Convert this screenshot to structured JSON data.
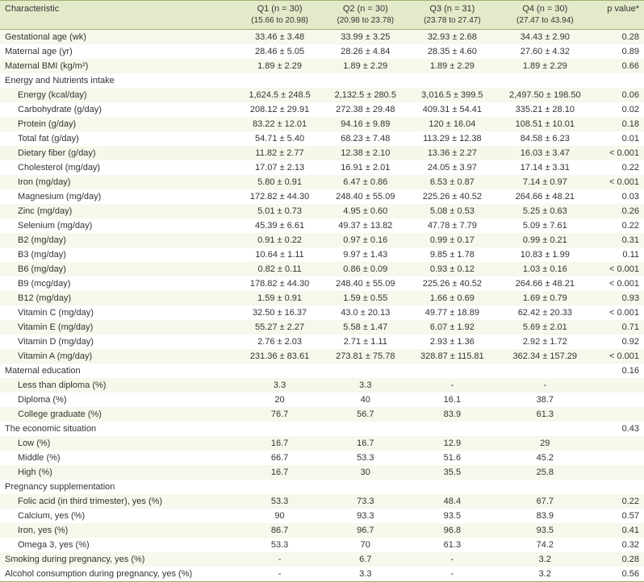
{
  "header": {
    "char": "Characteristic",
    "q1_l1": "Q1 (n = 30)",
    "q1_l2": "(15.66 to 20.98)",
    "q2_l1": "Q2 (n = 30)",
    "q2_l2": "(20.98 to 23.78)",
    "q3_l1": "Q3 (n = 31)",
    "q3_l2": "(23.78 to 27.47)",
    "q4_l1": "Q4 (n = 30)",
    "q4_l2": "(27.47 to 43.94)",
    "p": "p value*"
  },
  "rows": [
    {
      "cls": "odd section",
      "c": [
        "Gestational age (wk)",
        "33.46 ± 3.48",
        "33.99 ± 3.25",
        "32.93 ± 2.68",
        "34.43 ± 2.90",
        "0.28"
      ]
    },
    {
      "cls": "even section",
      "c": [
        "Maternal age (yr)",
        "28.46 ± 5.05",
        "28.26 ± 4.84",
        "28.35 ± 4.60",
        "27.60 ± 4.32",
        "0.89"
      ]
    },
    {
      "cls": "odd section",
      "c": [
        "Maternal BMI (kg/m²)",
        "1.89 ± 2.29",
        "1.89 ± 2.29",
        "1.89 ± 2.29",
        "1.89 ± 2.29",
        "0.66"
      ]
    },
    {
      "cls": "even section",
      "c": [
        "Energy and Nutrients intake",
        "",
        "",
        "",
        "",
        ""
      ]
    },
    {
      "cls": "odd indent",
      "c": [
        "Energy (kcal/day)",
        "1,624.5 ± 248.5",
        "2,132.5 ± 280.5",
        "3,016.5 ± 399.5",
        "2,497.50 ± 198.50",
        "0.06"
      ]
    },
    {
      "cls": "even indent",
      "c": [
        "Carbohydrate (g/day)",
        "208.12 ± 29.91",
        "272.38 ± 29.48",
        "409.31 ± 54.41",
        "335.21 ± 28.10",
        "0.02"
      ]
    },
    {
      "cls": "odd indent",
      "c": [
        "Protein (g/day)",
        "83.22 ± 12.01",
        "94.16 ± 9.89",
        "120 ± 16.04",
        "108.51 ± 10.01",
        "0.18"
      ]
    },
    {
      "cls": "even indent",
      "c": [
        "Total fat (g/day)",
        "54.71 ± 5.40",
        "68.23 ± 7.48",
        "113.29 ± 12.38",
        "84.58 ± 6.23",
        "0.01"
      ]
    },
    {
      "cls": "odd indent",
      "c": [
        "Dietary fiber (g/day)",
        "11.82 ± 2.77",
        "12.38 ± 2.10",
        "13.36 ± 2.27",
        "16.03 ± 3.47",
        "< 0.001"
      ]
    },
    {
      "cls": "even indent",
      "c": [
        "Cholesterol (mg/day)",
        "17.07 ± 2.13",
        "16.91 ± 2.01",
        "24.05 ± 3.97",
        "17.14 ± 3.31",
        "0.22"
      ]
    },
    {
      "cls": "odd indent",
      "c": [
        "Iron (mg/day)",
        "5.80 ± 0.91",
        "6.47 ± 0.86",
        "6.53 ± 0.87",
        "7.14 ± 0.97",
        "< 0.001"
      ]
    },
    {
      "cls": "even indent",
      "c": [
        "Magnesium (mg/day)",
        "172.82 ± 44.30",
        "248.40 ± 55.09",
        "225.26 ± 40.52",
        "264.66 ± 48.21",
        "0.03"
      ]
    },
    {
      "cls": "odd indent",
      "c": [
        "Zinc (mg/day)",
        "5.01 ± 0.73",
        "4.95 ± 0.60",
        "5.08 ± 0.53",
        "5.25 ± 0.63",
        "0.26"
      ]
    },
    {
      "cls": "even indent",
      "c": [
        "Selenium (mg/day)",
        "45.39 ± 6.61",
        "49.37 ± 13.82",
        "47.78 ± 7.79",
        "5.09 ± 7.61",
        "0.22"
      ]
    },
    {
      "cls": "odd indent",
      "c": [
        "B2 (mg/day)",
        "0.91 ± 0.22",
        "0.97 ± 0.16",
        "0.99 ± 0.17",
        "0.99 ± 0.21",
        "0.31"
      ]
    },
    {
      "cls": "even indent",
      "c": [
        "B3 (mg/day)",
        "10.64 ± 1.11",
        "9.97 ± 1.43",
        "9.85 ± 1.78",
        "10.83 ± 1.99",
        "0.11"
      ]
    },
    {
      "cls": "odd indent",
      "c": [
        "B6 (mg/day)",
        "0.82 ± 0.11",
        "0.86 ± 0.09",
        "0.93 ± 0.12",
        "1.03 ± 0.16",
        "< 0.001"
      ]
    },
    {
      "cls": "even indent",
      "c": [
        "B9 (mcg/day)",
        "178.82 ± 44.30",
        "248.40 ± 55.09",
        "225.26 ± 40.52",
        "264.66 ± 48.21",
        "< 0.001"
      ]
    },
    {
      "cls": "odd indent",
      "c": [
        "B12 (mg/day)",
        "1.59 ± 0.91",
        "1.59 ± 0.55",
        "1.66 ± 0.69",
        "1.69 ± 0.79",
        "0.93"
      ]
    },
    {
      "cls": "even indent",
      "c": [
        "Vitamin C (mg/day)",
        "32.50 ± 16.37",
        "43.0 ± 20.13",
        "49.77 ± 18.89",
        "62.42 ± 20.33",
        "< 0.001"
      ]
    },
    {
      "cls": "odd indent",
      "c": [
        "Vitamin E (mg/day)",
        "55.27 ± 2.27",
        "5.58 ± 1.47",
        "6.07 ± 1.92",
        "5.69 ± 2.01",
        "0.71"
      ]
    },
    {
      "cls": "even indent",
      "c": [
        "Vitamin D (mg/day)",
        "2.76 ± 2.03",
        "2.71 ± 1.11",
        "2.93 ± 1.36",
        "2.92 ± 1.72",
        "0.92"
      ]
    },
    {
      "cls": "odd indent",
      "c": [
        "Vitamin A (mg/day)",
        "231.36 ± 83.61",
        "273.81 ± 75.78",
        "328.87 ± 115.81",
        "362.34 ± 157.29",
        "< 0.001"
      ]
    },
    {
      "cls": "even section",
      "c": [
        "Maternal education",
        "",
        "",
        "",
        "",
        "0.16"
      ]
    },
    {
      "cls": "odd indent",
      "c": [
        "Less than diploma (%)",
        "3.3",
        "3.3",
        "-",
        "-",
        ""
      ]
    },
    {
      "cls": "even indent",
      "c": [
        "Diploma (%)",
        "20",
        "40",
        "16.1",
        "38.7",
        ""
      ]
    },
    {
      "cls": "odd indent",
      "c": [
        "College graduate (%)",
        "76.7",
        "56.7",
        "83.9",
        "61.3",
        ""
      ]
    },
    {
      "cls": "even section",
      "c": [
        "The economic situation",
        "",
        "",
        "",
        "",
        "0.43"
      ]
    },
    {
      "cls": "odd indent",
      "c": [
        "Low (%)",
        "16.7",
        "16.7",
        "12.9",
        "29",
        ""
      ]
    },
    {
      "cls": "even indent",
      "c": [
        "Middle (%)",
        "66.7",
        "53.3",
        "51.6",
        "45.2",
        ""
      ]
    },
    {
      "cls": "odd indent",
      "c": [
        "High (%)",
        "16.7",
        "30",
        "35.5",
        "25.8",
        ""
      ]
    },
    {
      "cls": "even section",
      "c": [
        "Pregnancy supplementation",
        "",
        "",
        "",
        "",
        ""
      ]
    },
    {
      "cls": "odd indent",
      "c": [
        "Folic acid (in third trimester), yes (%)",
        "53.3",
        "73.3",
        "48.4",
        "67.7",
        "0.22"
      ]
    },
    {
      "cls": "even indent",
      "c": [
        "Calcium, yes (%)",
        "90",
        "93.3",
        "93.5",
        "83.9",
        "0.57"
      ]
    },
    {
      "cls": "odd indent",
      "c": [
        "Iron, yes (%)",
        "86.7",
        "96.7",
        "96.8",
        "93.5",
        "0.41"
      ]
    },
    {
      "cls": "even indent",
      "c": [
        "Omega 3, yes (%)",
        "53.3",
        "70",
        "61.3",
        "74.2",
        "0.32"
      ]
    },
    {
      "cls": "odd section",
      "c": [
        "Smoking during pregnancy, yes (%)",
        "-",
        "6.7",
        "-",
        "3.2",
        "0.28"
      ]
    },
    {
      "cls": "even section lastrow",
      "c": [
        "Alcohol consumption during pregnancy, yes (%)",
        "-",
        "3.3",
        "-",
        "3.2",
        "0.56"
      ]
    }
  ]
}
